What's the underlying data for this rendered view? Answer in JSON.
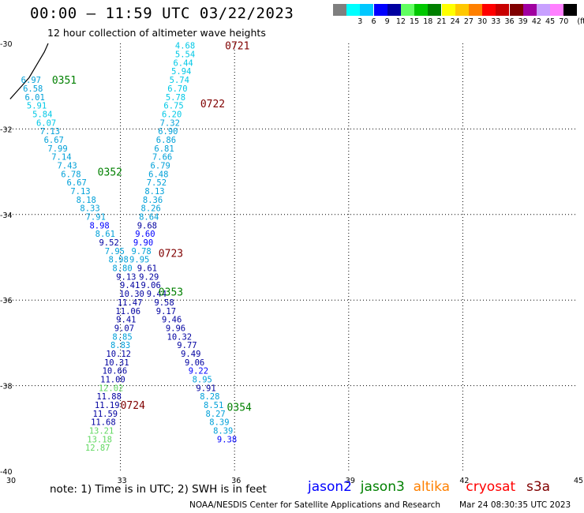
{
  "header": {
    "title": "00:00 – 11:59 UTC 03/22/2023",
    "subtitle": "12 hour collection of altimeter wave heights"
  },
  "colorbar": {
    "unit": "(ft)",
    "bins": [
      {
        "label": "",
        "color": "#7f7f7f"
      },
      {
        "label": "3",
        "color": "#00ffff"
      },
      {
        "label": "6",
        "color": "#00c8ff"
      },
      {
        "label": "9",
        "color": "#0000ff"
      },
      {
        "label": "12",
        "color": "#0000a0"
      },
      {
        "label": "15",
        "color": "#60ff60"
      },
      {
        "label": "18",
        "color": "#00c800"
      },
      {
        "label": "21",
        "color": "#008000"
      },
      {
        "label": "24",
        "color": "#ffff00"
      },
      {
        "label": "27",
        "color": "#ffc800"
      },
      {
        "label": "30",
        "color": "#ff8000"
      },
      {
        "label": "33",
        "color": "#ff0000"
      },
      {
        "label": "36",
        "color": "#c80000"
      },
      {
        "label": "39",
        "color": "#800000"
      },
      {
        "label": "42",
        "color": "#a000a0"
      },
      {
        "label": "45",
        "color": "#c8a0ff"
      },
      {
        "label": "70",
        "color": "#ff80ff"
      },
      {
        "label": "",
        "color": "#000000"
      }
    ]
  },
  "chart_data": {
    "type": "scatter",
    "xlim": [
      30,
      45
    ],
    "ylim": [
      -40,
      -30
    ],
    "x_ticks": [
      30,
      33,
      36,
      39,
      42,
      45
    ],
    "y_ticks": [
      -30,
      -32,
      -34,
      -36,
      -38,
      -40
    ],
    "grid": true,
    "colors": {
      "cyan": "#00c8e6",
      "lightblue": "#00a0d8",
      "blue": "#0000ff",
      "navy": "#0000a0",
      "green": "#60d860",
      "darkgreen": "#008000",
      "maroon": "#800000"
    },
    "coastline": [
      [
        30.1,
        -31.3
      ],
      [
        30.3,
        -31.1
      ],
      [
        30.6,
        -30.8
      ],
      [
        30.8,
        -30.5
      ],
      [
        31.0,
        -30.2
      ],
      [
        31.1,
        -30.0
      ]
    ],
    "time_labels": [
      {
        "text": "0721",
        "x": 35.75,
        "y": -30.05,
        "color": "maroon"
      },
      {
        "text": "0722",
        "x": 35.1,
        "y": -31.4,
        "color": "maroon"
      },
      {
        "text": "0723",
        "x": 34.0,
        "y": -34.9,
        "color": "maroon"
      },
      {
        "text": "0724",
        "x": 33.0,
        "y": -38.45,
        "color": "maroon"
      },
      {
        "text": "0351",
        "x": 31.2,
        "y": -30.85,
        "color": "darkgreen"
      },
      {
        "text": "0352",
        "x": 32.4,
        "y": -33.0,
        "color": "darkgreen"
      },
      {
        "text": "0353",
        "x": 34.0,
        "y": -35.8,
        "color": "darkgreen"
      },
      {
        "text": "0354",
        "x": 35.8,
        "y": -38.5,
        "color": "darkgreen"
      }
    ],
    "series": [
      {
        "points": [
          {
            "x": 34.7,
            "y": -30.05,
            "v": "4.68",
            "c": "cyan"
          },
          {
            "x": 34.7,
            "y": -30.25,
            "v": "5.54",
            "c": "cyan"
          },
          {
            "x": 34.65,
            "y": -30.45,
            "v": "6.44",
            "c": "cyan"
          },
          {
            "x": 34.6,
            "y": -30.65,
            "v": "5.94",
            "c": "cyan"
          },
          {
            "x": 34.55,
            "y": -30.85,
            "v": "5.74",
            "c": "cyan"
          },
          {
            "x": 34.5,
            "y": -31.05,
            "v": "6.70",
            "c": "cyan"
          },
          {
            "x": 34.45,
            "y": -31.25,
            "v": "5.78",
            "c": "cyan"
          },
          {
            "x": 34.4,
            "y": -31.45,
            "v": "6.75",
            "c": "cyan"
          },
          {
            "x": 34.35,
            "y": -31.65,
            "v": "6.20",
            "c": "cyan"
          },
          {
            "x": 34.3,
            "y": -31.85,
            "v": "7.32",
            "c": "lightblue"
          },
          {
            "x": 34.25,
            "y": -32.05,
            "v": "6.90",
            "c": "lightblue"
          },
          {
            "x": 34.2,
            "y": -32.25,
            "v": "6.86",
            "c": "lightblue"
          },
          {
            "x": 34.15,
            "y": -32.45,
            "v": "6.81",
            "c": "lightblue"
          },
          {
            "x": 34.1,
            "y": -32.65,
            "v": "7.66",
            "c": "lightblue"
          },
          {
            "x": 34.05,
            "y": -32.85,
            "v": "6.79",
            "c": "lightblue"
          },
          {
            "x": 34.0,
            "y": -33.05,
            "v": "6.48",
            "c": "lightblue"
          },
          {
            "x": 33.95,
            "y": -33.25,
            "v": "7.52",
            "c": "lightblue"
          },
          {
            "x": 33.9,
            "y": -33.45,
            "v": "8.13",
            "c": "lightblue"
          },
          {
            "x": 33.85,
            "y": -33.65,
            "v": "8.36",
            "c": "lightblue"
          },
          {
            "x": 33.8,
            "y": -33.85,
            "v": "8.26",
            "c": "lightblue"
          },
          {
            "x": 33.75,
            "y": -34.05,
            "v": "8.64",
            "c": "lightblue"
          },
          {
            "x": 33.7,
            "y": -34.25,
            "v": "9.68",
            "c": "navy"
          },
          {
            "x": 33.65,
            "y": -34.45,
            "v": "9.60",
            "c": "blue"
          },
          {
            "x": 33.6,
            "y": -34.65,
            "v": "9.90",
            "c": "blue"
          },
          {
            "x": 33.55,
            "y": -34.85,
            "v": "9.78",
            "c": "lightblue"
          },
          {
            "x": 33.5,
            "y": -35.05,
            "v": "9.95",
            "c": "lightblue"
          },
          {
            "x": 33.7,
            "y": -35.25,
            "v": "9.61",
            "c": "navy"
          },
          {
            "x": 33.75,
            "y": -35.45,
            "v": "9.29",
            "c": "navy"
          },
          {
            "x": 33.8,
            "y": -35.65,
            "v": "9.06",
            "c": "navy"
          },
          {
            "x": 33.95,
            "y": -35.85,
            "v": "9.44",
            "c": "navy"
          },
          {
            "x": 34.15,
            "y": -36.05,
            "v": "9.58",
            "c": "navy"
          },
          {
            "x": 34.2,
            "y": -36.25,
            "v": "9.17",
            "c": "navy"
          },
          {
            "x": 34.35,
            "y": -36.45,
            "v": "9.46",
            "c": "navy"
          },
          {
            "x": 34.45,
            "y": -36.65,
            "v": "9.96",
            "c": "navy"
          },
          {
            "x": 34.55,
            "y": -36.85,
            "v": "10.32",
            "c": "navy"
          },
          {
            "x": 34.75,
            "y": -37.05,
            "v": "9.77",
            "c": "navy"
          },
          {
            "x": 34.85,
            "y": -37.25,
            "v": "9.49",
            "c": "navy"
          },
          {
            "x": 34.95,
            "y": -37.45,
            "v": "9.06",
            "c": "navy"
          },
          {
            "x": 35.05,
            "y": -37.65,
            "v": "9.22",
            "c": "blue"
          },
          {
            "x": 35.15,
            "y": -37.85,
            "v": "8.95",
            "c": "lightblue"
          },
          {
            "x": 35.25,
            "y": -38.05,
            "v": "9.91",
            "c": "navy"
          },
          {
            "x": 35.35,
            "y": -38.25,
            "v": "8.28",
            "c": "lightblue"
          },
          {
            "x": 35.45,
            "y": -38.45,
            "v": "8.51",
            "c": "lightblue"
          },
          {
            "x": 35.5,
            "y": -38.65,
            "v": "8.27",
            "c": "lightblue"
          },
          {
            "x": 35.6,
            "y": -38.85,
            "v": "8.39",
            "c": "lightblue"
          },
          {
            "x": 35.7,
            "y": -39.05,
            "v": "8.39",
            "c": "lightblue"
          },
          {
            "x": 35.8,
            "y": -39.25,
            "v": "9.38",
            "c": "blue"
          }
        ]
      },
      {
        "points": [
          {
            "x": 30.65,
            "y": -30.85,
            "v": "6.97",
            "c": "lightblue"
          },
          {
            "x": 30.7,
            "y": -31.05,
            "v": "6.58",
            "c": "lightblue"
          },
          {
            "x": 30.75,
            "y": -31.25,
            "v": "6.01",
            "c": "lightblue"
          },
          {
            "x": 30.8,
            "y": -31.45,
            "v": "5.91",
            "c": "cyan"
          },
          {
            "x": 30.95,
            "y": -31.65,
            "v": "5.84",
            "c": "cyan"
          },
          {
            "x": 31.05,
            "y": -31.85,
            "v": "6.07",
            "c": "cyan"
          },
          {
            "x": 31.15,
            "y": -32.05,
            "v": "7.13",
            "c": "lightblue"
          },
          {
            "x": 31.25,
            "y": -32.25,
            "v": "6.67",
            "c": "lightblue"
          },
          {
            "x": 31.35,
            "y": -32.45,
            "v": "7.99",
            "c": "lightblue"
          },
          {
            "x": 31.45,
            "y": -32.65,
            "v": "7.14",
            "c": "lightblue"
          },
          {
            "x": 31.6,
            "y": -32.85,
            "v": "7.43",
            "c": "lightblue"
          },
          {
            "x": 31.7,
            "y": -33.05,
            "v": "6.78",
            "c": "lightblue"
          },
          {
            "x": 31.85,
            "y": -33.25,
            "v": "6.67",
            "c": "lightblue"
          },
          {
            "x": 31.95,
            "y": -33.45,
            "v": "7.13",
            "c": "lightblue"
          },
          {
            "x": 32.1,
            "y": -33.65,
            "v": "8.18",
            "c": "lightblue"
          },
          {
            "x": 32.2,
            "y": -33.85,
            "v": "8.33",
            "c": "lightblue"
          },
          {
            "x": 32.35,
            "y": -34.05,
            "v": "7.91",
            "c": "lightblue"
          },
          {
            "x": 32.45,
            "y": -34.25,
            "v": "8.98",
            "c": "blue"
          },
          {
            "x": 32.6,
            "y": -34.45,
            "v": "8.61",
            "c": "lightblue"
          },
          {
            "x": 32.7,
            "y": -34.65,
            "v": "9.52",
            "c": "navy"
          },
          {
            "x": 32.85,
            "y": -34.85,
            "v": "7.95",
            "c": "lightblue"
          },
          {
            "x": 32.95,
            "y": -35.05,
            "v": "8.98",
            "c": "lightblue"
          },
          {
            "x": 33.05,
            "y": -35.25,
            "v": "8.80",
            "c": "lightblue"
          },
          {
            "x": 33.15,
            "y": -35.45,
            "v": "9.13",
            "c": "navy"
          },
          {
            "x": 33.25,
            "y": -35.65,
            "v": "9.41",
            "c": "navy"
          },
          {
            "x": 33.3,
            "y": -35.85,
            "v": "10.30",
            "c": "navy"
          },
          {
            "x": 33.25,
            "y": -36.05,
            "v": "11.47",
            "c": "navy"
          },
          {
            "x": 33.2,
            "y": -36.25,
            "v": "11.06",
            "c": "navy"
          },
          {
            "x": 33.15,
            "y": -36.45,
            "v": "9.41",
            "c": "navy"
          },
          {
            "x": 33.1,
            "y": -36.65,
            "v": "9.07",
            "c": "navy"
          },
          {
            "x": 33.05,
            "y": -36.85,
            "v": "8.85",
            "c": "lightblue"
          },
          {
            "x": 33.0,
            "y": -37.05,
            "v": "8.83",
            "c": "lightblue"
          },
          {
            "x": 32.95,
            "y": -37.25,
            "v": "10.12",
            "c": "navy"
          },
          {
            "x": 32.9,
            "y": -37.45,
            "v": "10.31",
            "c": "navy"
          },
          {
            "x": 32.85,
            "y": -37.65,
            "v": "10.66",
            "c": "navy"
          },
          {
            "x": 32.8,
            "y": -37.85,
            "v": "11.00",
            "c": "navy"
          },
          {
            "x": 32.75,
            "y": -38.05,
            "v": "12.02",
            "c": "green"
          },
          {
            "x": 32.7,
            "y": -38.25,
            "v": "11.88",
            "c": "navy"
          },
          {
            "x": 32.65,
            "y": -38.45,
            "v": "11.19",
            "c": "navy"
          },
          {
            "x": 32.6,
            "y": -38.65,
            "v": "11.59",
            "c": "navy"
          },
          {
            "x": 32.55,
            "y": -38.85,
            "v": "11.68",
            "c": "navy"
          },
          {
            "x": 32.5,
            "y": -39.05,
            "v": "13.21",
            "c": "green"
          },
          {
            "x": 32.45,
            "y": -39.25,
            "v": "13.18",
            "c": "green"
          },
          {
            "x": 32.4,
            "y": -39.45,
            "v": "12.87",
            "c": "green"
          }
        ]
      }
    ]
  },
  "footer": {
    "note": "note:  1) Time is in UTC; 2) SWH is in feet",
    "satellites": [
      {
        "name": "jason2",
        "color": "#0000ff"
      },
      {
        "name": "jason3",
        "color": "#008000"
      },
      {
        "name": "altika",
        "color": "#ff8000"
      },
      {
        "name": "cryosat",
        "color": "#ff0000"
      },
      {
        "name": "s3a",
        "color": "#800000"
      }
    ],
    "credit": "NOAA/NESDIS Center for Satellite Applications and Research",
    "timestamp": "Mar 24 08:30:35 UTC 2023"
  }
}
